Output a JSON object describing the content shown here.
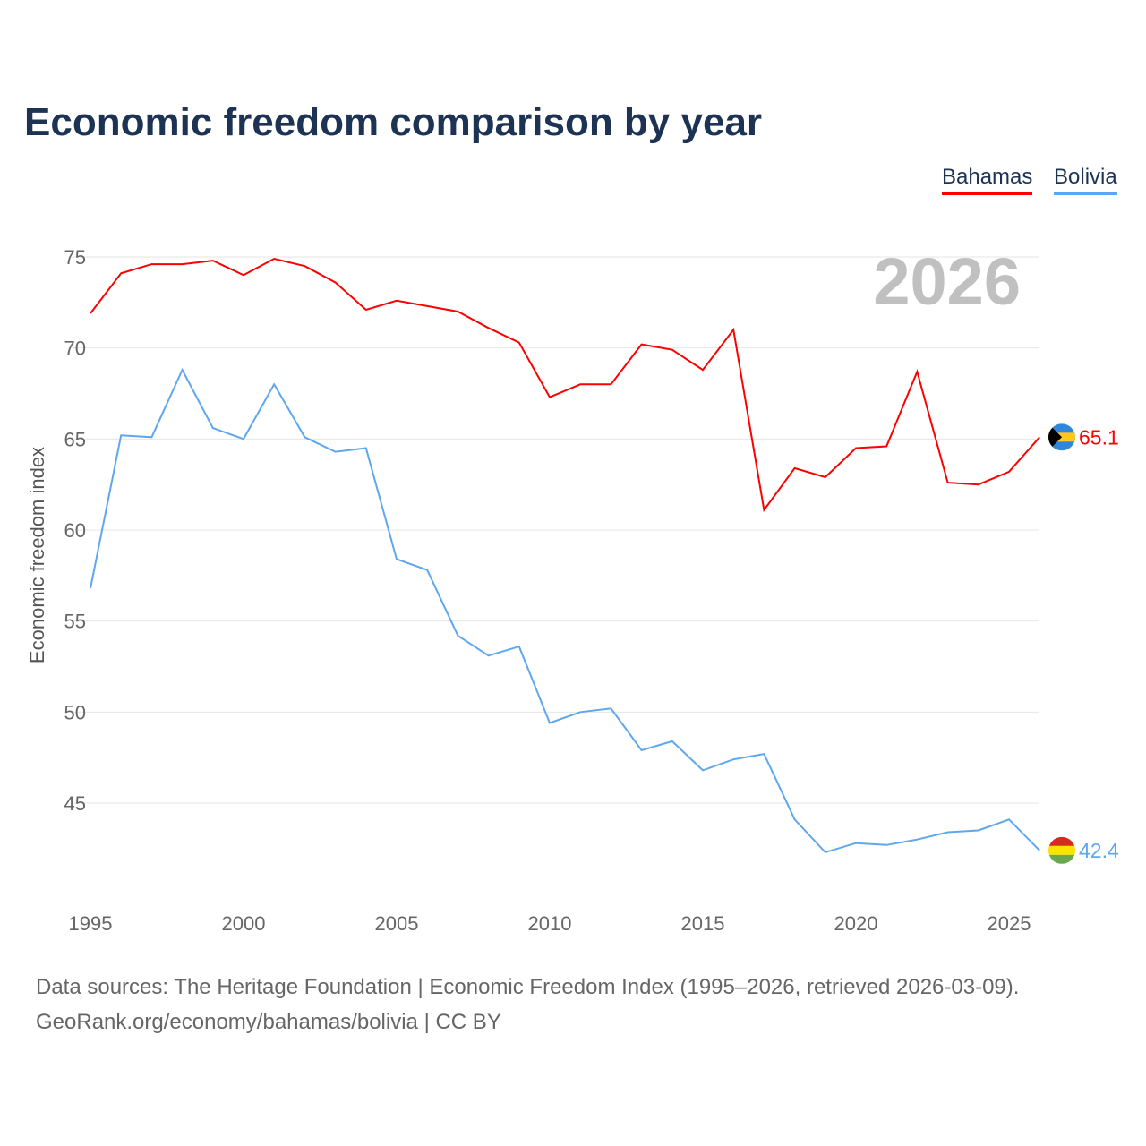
{
  "title": "Economic freedom comparison by year",
  "footer": {
    "line1": "Data sources: The Heritage Foundation | Economic Freedom Index (1995–2026, retrieved 2026-03-09).",
    "line2": "GeoRank.org/economy/bahamas/bolivia | CC BY"
  },
  "chart_data": {
    "type": "line",
    "title": "Economic freedom comparison by year",
    "xlabel": "",
    "ylabel": "Economic freedom index",
    "year_watermark": "2026",
    "x": [
      1995,
      1996,
      1997,
      1998,
      1999,
      2000,
      2001,
      2002,
      2003,
      2004,
      2005,
      2006,
      2007,
      2008,
      2009,
      2010,
      2011,
      2012,
      2013,
      2014,
      2015,
      2016,
      2017,
      2018,
      2019,
      2020,
      2021,
      2022,
      2023,
      2024,
      2025,
      2026
    ],
    "xlim": [
      1995,
      2026
    ],
    "ylim": [
      40.5,
      76.5
    ],
    "xticks": [
      "1995",
      "2000",
      "2005",
      "2010",
      "2015",
      "2020",
      "2025"
    ],
    "yticks": [
      "45",
      "50",
      "55",
      "60",
      "65",
      "70",
      "75"
    ],
    "grid": true,
    "legend_position": "top-right",
    "series": [
      {
        "name": "Bahamas",
        "color": "#ff0000",
        "end_label": "65.1",
        "values": [
          71.9,
          74.1,
          74.6,
          74.6,
          74.8,
          74.0,
          74.9,
          74.5,
          73.6,
          72.1,
          72.6,
          72.3,
          72.0,
          71.1,
          70.3,
          67.3,
          68.0,
          68.0,
          70.2,
          69.9,
          68.8,
          71.0,
          61.1,
          63.4,
          62.9,
          64.5,
          64.6,
          68.7,
          62.6,
          62.5,
          63.2,
          65.1
        ]
      },
      {
        "name": "Bolivia",
        "color": "#5ea7ef",
        "end_label": "42.4",
        "values": [
          56.8,
          65.2,
          65.1,
          68.8,
          65.6,
          65.0,
          68.0,
          65.1,
          64.3,
          64.5,
          58.4,
          57.8,
          54.2,
          53.1,
          53.6,
          49.4,
          50.0,
          50.2,
          47.9,
          48.4,
          46.8,
          47.4,
          47.7,
          44.1,
          42.3,
          42.8,
          42.7,
          43.0,
          43.4,
          43.5,
          44.1,
          42.4
        ]
      }
    ]
  }
}
